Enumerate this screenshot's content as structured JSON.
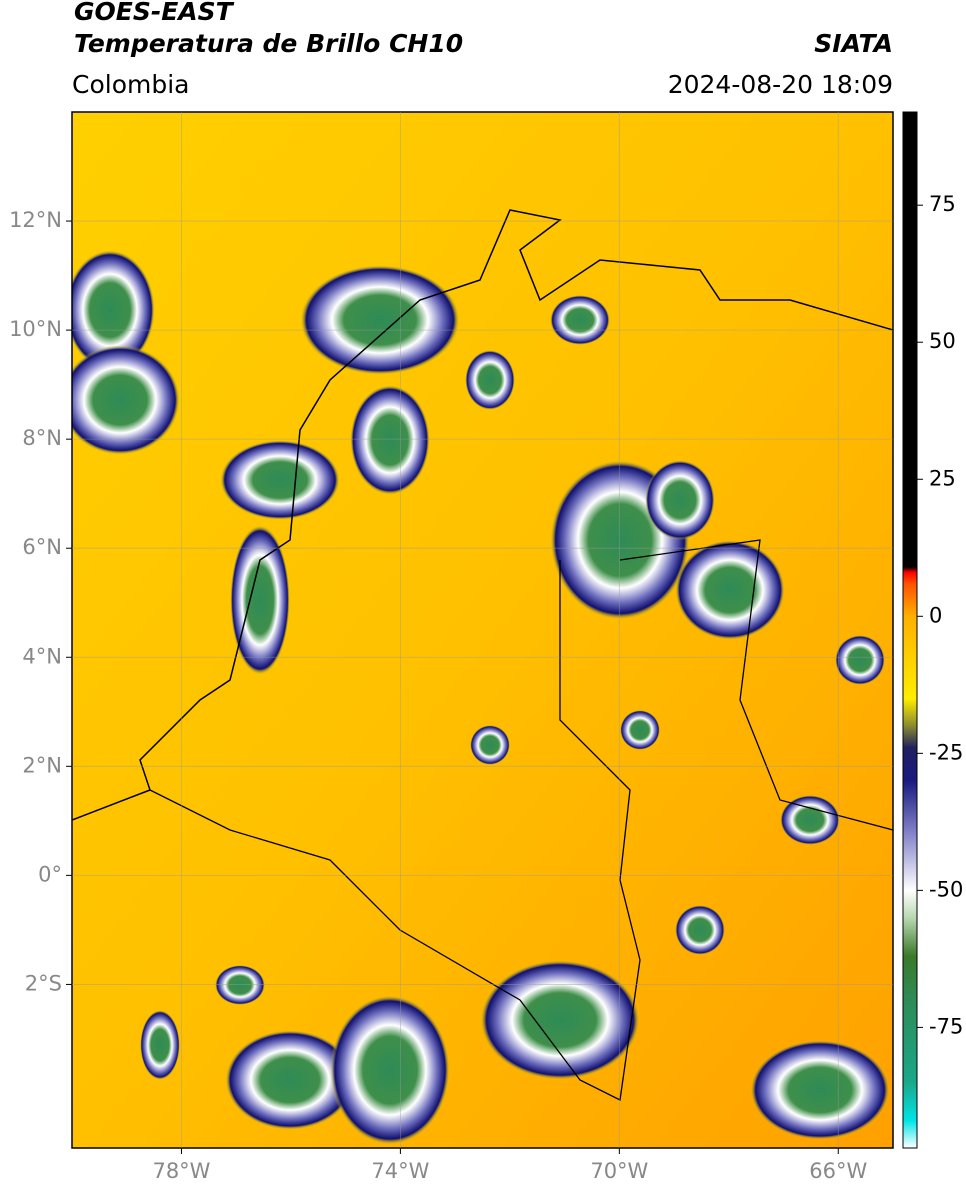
{
  "header": {
    "title": "GOES-EAST",
    "subtitle": "Temperatura de Brillo CH10",
    "region": "Colombia",
    "source": "SIATA",
    "datetime": "2024-08-20 18:09"
  },
  "map": {
    "xlim": [
      -80,
      -65
    ],
    "ylim": [
      -5,
      14
    ],
    "xticks": [
      {
        "value": -78,
        "label": "78°W"
      },
      {
        "value": -74,
        "label": "74°W"
      },
      {
        "value": -70,
        "label": "70°W"
      },
      {
        "value": -66,
        "label": "66°W"
      }
    ],
    "yticks": [
      {
        "value": 12,
        "label": "12°N"
      },
      {
        "value": 10,
        "label": "10°N"
      },
      {
        "value": 8,
        "label": "8°N"
      },
      {
        "value": 6,
        "label": "6°N"
      },
      {
        "value": 4,
        "label": "4°N"
      },
      {
        "value": 2,
        "label": "2°N"
      },
      {
        "value": 0,
        "label": "0°"
      },
      {
        "value": -2,
        "label": "2°S"
      }
    ],
    "grid": true
  },
  "colorbar": {
    "lim": [
      -97,
      92
    ],
    "ticks": [
      -75,
      -50,
      -25,
      0,
      25,
      50,
      75
    ],
    "stops": [
      {
        "value": -97,
        "color": "#ffffff"
      },
      {
        "value": -92,
        "color": "#00e5e5"
      },
      {
        "value": -85,
        "color": "#1aa88a"
      },
      {
        "value": -70,
        "color": "#2e8b57"
      },
      {
        "value": -62,
        "color": "#3a7a2a"
      },
      {
        "value": -55,
        "color": "#b8d8b0"
      },
      {
        "value": -50,
        "color": "#ffffff"
      },
      {
        "value": -40,
        "color": "#8888cc"
      },
      {
        "value": -30,
        "color": "#1a1a80"
      },
      {
        "value": -24,
        "color": "#202060"
      },
      {
        "value": -20,
        "color": "#8a8a30"
      },
      {
        "value": -15,
        "color": "#ffee00"
      },
      {
        "value": 0,
        "color": "#ffb000"
      },
      {
        "value": 6,
        "color": "#ff5000"
      },
      {
        "value": 8,
        "color": "#ff0000"
      },
      {
        "value": 9,
        "color": "#000000"
      },
      {
        "value": 92,
        "color": "#000000"
      }
    ]
  }
}
